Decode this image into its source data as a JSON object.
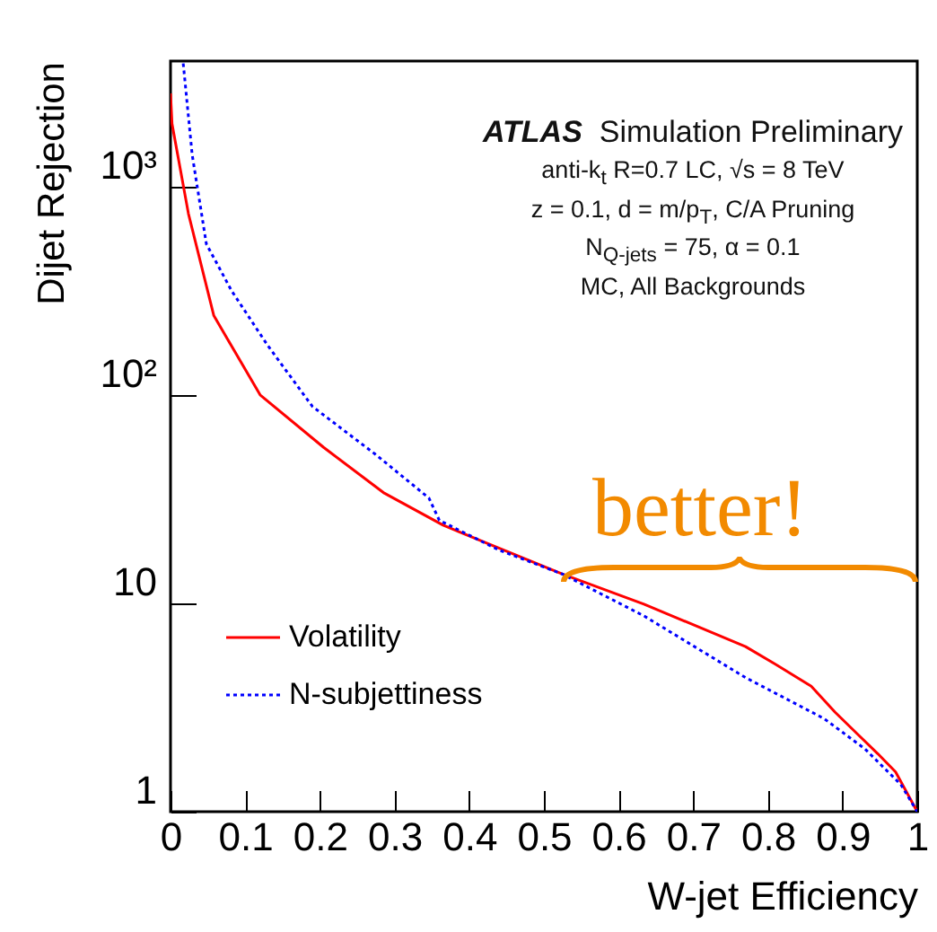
{
  "chart_data": {
    "type": "line",
    "title": "ATLAS",
    "subtitle": "Simulation Preliminary",
    "xlabel": "W-jet Efficiency",
    "ylabel": "Dijet Rejection",
    "annotations": [
      "anti-k$_{t}$ R=0.7 LC, √s = 8 TeV",
      "z = 0.1, d = m/p$_{T}$, C/A Pruning",
      "N$_{Q-jets}$ = 75, α = 0.1",
      "MC, All Backgrounds",
      "better!"
    ],
    "series": [
      {
        "name": "Volatility",
        "color": "#ff0000",
        "line_style": "solid",
        "x": [
          0,
          0.002,
          0.024,
          0.058,
          0.12,
          0.205,
          0.285,
          0.365,
          0.525,
          0.634,
          0.77,
          0.81,
          0.858,
          0.89,
          0.923,
          0.947,
          0.971,
          1.0
        ],
        "values": [
          2800,
          2000,
          740,
          240,
          100,
          56,
          34,
          23.7,
          13.8,
          9.9,
          6.2,
          5.1,
          4.0,
          3.0,
          2.3,
          1.9,
          1.55,
          1
        ]
      },
      {
        "name": "N-subjettiness",
        "color": "#0000ff",
        "line_style": "dotted",
        "x": [
          0.017,
          0.029,
          0.048,
          0.082,
          0.13,
          0.19,
          0.274,
          0.346,
          0.36,
          0.44,
          0.525,
          0.634,
          0.77,
          0.875,
          0.93,
          0.978,
          1.0
        ],
        "values": [
          3900,
          1420,
          530,
          315,
          173,
          88,
          52,
          32,
          25,
          18,
          13.8,
          8.7,
          4.4,
          2.8,
          2.0,
          1.35,
          1
        ]
      }
    ],
    "xlim": [
      0,
      1
    ],
    "xticks": [
      0,
      0.1,
      0.2,
      0.3,
      0.4,
      0.5,
      0.6,
      0.7,
      0.8,
      0.9,
      1
    ],
    "ylim": [
      1,
      4000
    ],
    "yticks": [
      1,
      10,
      {
        "value": 100,
        "label": "10²"
      },
      {
        "value": 1000,
        "label": "10³"
      }
    ],
    "log": "y",
    "grid": false,
    "legend": "bottom left",
    "marker": "none"
  }
}
